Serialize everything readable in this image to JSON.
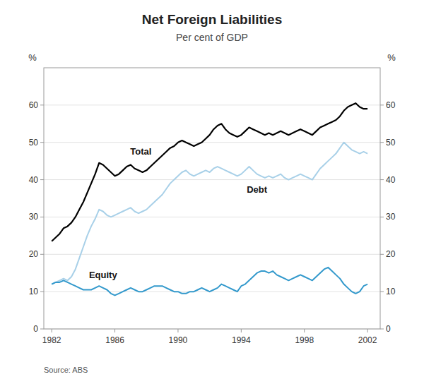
{
  "chart_data": {
    "type": "line",
    "title": "Net Foreign Liabilities",
    "subtitle": "Per cent of GDP",
    "y_label": "%",
    "y2_label": "%",
    "source": "Source: ABS",
    "grid": true,
    "xlim": [
      1981.5,
      2002.8
    ],
    "xticks": [
      1982,
      1986,
      1990,
      1994,
      1998,
      2002
    ],
    "ylim": [
      0,
      70
    ],
    "yticks": [
      0,
      10,
      20,
      30,
      40,
      50,
      60
    ],
    "y2lim": [
      0,
      70
    ],
    "y2ticks": [
      0,
      10,
      20,
      30,
      40,
      50,
      60
    ],
    "x": [
      1982.0,
      1982.25,
      1982.5,
      1982.75,
      1983.0,
      1983.25,
      1983.5,
      1983.75,
      1984.0,
      1984.25,
      1984.5,
      1984.75,
      1985.0,
      1985.25,
      1985.5,
      1985.75,
      1986.0,
      1986.25,
      1986.5,
      1986.75,
      1987.0,
      1987.25,
      1987.5,
      1987.75,
      1988.0,
      1988.25,
      1988.5,
      1988.75,
      1989.0,
      1989.25,
      1989.5,
      1989.75,
      1990.0,
      1990.25,
      1990.5,
      1990.75,
      1991.0,
      1991.25,
      1991.5,
      1991.75,
      1992.0,
      1992.25,
      1992.5,
      1992.75,
      1993.0,
      1993.25,
      1993.5,
      1993.75,
      1994.0,
      1994.25,
      1994.5,
      1994.75,
      1995.0,
      1995.25,
      1995.5,
      1995.75,
      1996.0,
      1996.25,
      1996.5,
      1996.75,
      1997.0,
      1997.25,
      1997.5,
      1997.75,
      1998.0,
      1998.25,
      1998.5,
      1998.75,
      1999.0,
      1999.25,
      1999.5,
      1999.75,
      2000.0,
      2000.25,
      2000.5,
      2000.75,
      2001.0,
      2001.25,
      2001.5,
      2001.75,
      2002.0
    ],
    "series": [
      {
        "name": "Total",
        "color": "#000000",
        "values": [
          23.5,
          24.5,
          25.5,
          27.0,
          27.5,
          28.5,
          30.0,
          32.0,
          34.0,
          36.5,
          39.0,
          41.5,
          44.5,
          44.0,
          43.0,
          42.0,
          41.0,
          41.5,
          42.5,
          43.5,
          44.0,
          43.0,
          42.5,
          42.0,
          42.5,
          43.5,
          44.5,
          45.5,
          46.5,
          47.5,
          48.5,
          49.0,
          50.0,
          50.5,
          50.0,
          49.5,
          49.0,
          49.5,
          50.0,
          51.0,
          52.0,
          53.5,
          54.5,
          55.0,
          53.5,
          52.5,
          52.0,
          51.5,
          52.0,
          53.0,
          54.0,
          53.5,
          53.0,
          52.5,
          52.0,
          52.5,
          52.0,
          52.5,
          53.0,
          52.5,
          52.0,
          52.5,
          53.0,
          53.5,
          53.0,
          52.5,
          52.0,
          53.0,
          54.0,
          54.5,
          55.0,
          55.5,
          56.0,
          57.0,
          58.5,
          59.5,
          60.0,
          60.5,
          59.5,
          59.0,
          59.0
        ]
      },
      {
        "name": "Debt",
        "color": "#a8d0e8",
        "values": [
          12.0,
          12.5,
          13.0,
          13.5,
          13.0,
          14.0,
          16.0,
          19.0,
          22.0,
          25.0,
          27.5,
          29.5,
          32.0,
          31.5,
          30.5,
          30.0,
          30.5,
          31.0,
          31.5,
          32.0,
          32.5,
          31.5,
          31.0,
          31.5,
          32.0,
          33.0,
          34.0,
          35.0,
          36.0,
          37.5,
          39.0,
          40.0,
          41.0,
          42.0,
          42.5,
          41.5,
          41.0,
          41.5,
          42.0,
          42.5,
          42.0,
          43.0,
          43.5,
          43.0,
          42.5,
          42.0,
          41.5,
          41.0,
          41.5,
          42.5,
          43.5,
          42.5,
          41.5,
          41.0,
          40.5,
          41.0,
          40.5,
          41.0,
          41.5,
          40.5,
          40.0,
          40.5,
          41.0,
          41.5,
          41.0,
          40.5,
          40.0,
          41.5,
          43.0,
          44.0,
          45.0,
          46.0,
          47.0,
          48.5,
          50.0,
          49.0,
          48.0,
          47.5,
          47.0,
          47.5,
          47.0
        ]
      },
      {
        "name": "Equity",
        "color": "#3399cc",
        "values": [
          12.0,
          12.5,
          12.5,
          13.0,
          12.5,
          12.0,
          11.5,
          11.0,
          10.5,
          10.5,
          10.5,
          11.0,
          11.5,
          11.0,
          10.5,
          9.5,
          9.0,
          9.5,
          10.0,
          10.5,
          11.0,
          10.5,
          10.0,
          10.0,
          10.5,
          11.0,
          11.5,
          11.5,
          11.5,
          11.0,
          10.5,
          10.0,
          10.0,
          9.5,
          9.5,
          10.0,
          10.0,
          10.5,
          11.0,
          10.5,
          10.0,
          10.5,
          11.0,
          12.0,
          11.5,
          11.0,
          10.5,
          10.0,
          11.5,
          12.0,
          13.0,
          14.0,
          15.0,
          15.5,
          15.5,
          15.0,
          15.5,
          14.5,
          14.0,
          13.5,
          13.0,
          13.5,
          14.0,
          14.5,
          14.0,
          13.5,
          13.0,
          14.0,
          15.0,
          16.0,
          16.5,
          15.5,
          14.5,
          13.5,
          12.0,
          11.0,
          10.0,
          9.5,
          10.0,
          11.5,
          12.0
        ]
      }
    ]
  }
}
